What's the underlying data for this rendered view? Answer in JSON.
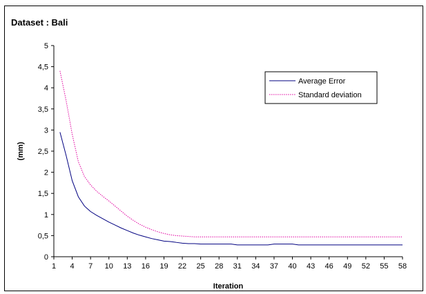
{
  "chart_data": {
    "type": "line",
    "title": "Dataset : Bali",
    "xlabel": "Iteration",
    "ylabel": "(mm)",
    "xlim": [
      1,
      58
    ],
    "ylim": [
      0,
      5
    ],
    "x_ticks": [
      1,
      4,
      7,
      10,
      13,
      16,
      19,
      22,
      25,
      28,
      31,
      34,
      37,
      40,
      43,
      46,
      49,
      52,
      55,
      58
    ],
    "y_ticks": [
      "0",
      "0,5",
      "1",
      "1,5",
      "2",
      "2,5",
      "3",
      "3,5",
      "4",
      "4,5",
      "5"
    ],
    "grid": false,
    "legend": "right",
    "x": [
      2,
      3,
      4,
      5,
      6,
      7,
      8,
      9,
      10,
      11,
      12,
      13,
      14,
      15,
      16,
      17,
      18,
      19,
      20,
      21,
      22,
      23,
      24,
      25,
      26,
      27,
      28,
      29,
      30,
      31,
      32,
      33,
      34,
      35,
      36,
      37,
      38,
      39,
      40,
      41,
      42,
      43,
      44,
      45,
      46,
      47,
      48,
      49,
      50,
      51,
      52,
      53,
      54,
      55,
      56,
      57,
      58
    ],
    "series": [
      {
        "name": "Average Error",
        "color": "#000080",
        "style": "solid",
        "values": [
          2.95,
          2.4,
          1.8,
          1.42,
          1.2,
          1.07,
          0.98,
          0.9,
          0.82,
          0.75,
          0.68,
          0.62,
          0.56,
          0.51,
          0.47,
          0.43,
          0.4,
          0.37,
          0.36,
          0.34,
          0.32,
          0.31,
          0.31,
          0.3,
          0.3,
          0.3,
          0.3,
          0.3,
          0.3,
          0.28,
          0.28,
          0.28,
          0.28,
          0.28,
          0.28,
          0.3,
          0.3,
          0.3,
          0.3,
          0.28,
          0.28,
          0.28,
          0.28,
          0.28,
          0.28,
          0.28,
          0.28,
          0.28,
          0.28,
          0.28,
          0.28,
          0.28,
          0.28,
          0.28,
          0.28,
          0.28,
          0.28
        ]
      },
      {
        "name": "Standard deviation",
        "color": "#e000a0",
        "style": "dotted",
        "values": [
          4.4,
          3.7,
          2.9,
          2.25,
          1.9,
          1.7,
          1.55,
          1.43,
          1.32,
          1.2,
          1.08,
          0.96,
          0.86,
          0.77,
          0.7,
          0.64,
          0.59,
          0.55,
          0.52,
          0.5,
          0.49,
          0.48,
          0.47,
          0.47,
          0.47,
          0.47,
          0.47,
          0.47,
          0.47,
          0.47,
          0.47,
          0.47,
          0.47,
          0.47,
          0.47,
          0.47,
          0.47,
          0.47,
          0.47,
          0.47,
          0.47,
          0.47,
          0.47,
          0.47,
          0.47,
          0.47,
          0.47,
          0.47,
          0.47,
          0.47,
          0.47,
          0.47,
          0.47,
          0.47,
          0.47,
          0.47,
          0.47
        ]
      }
    ]
  }
}
